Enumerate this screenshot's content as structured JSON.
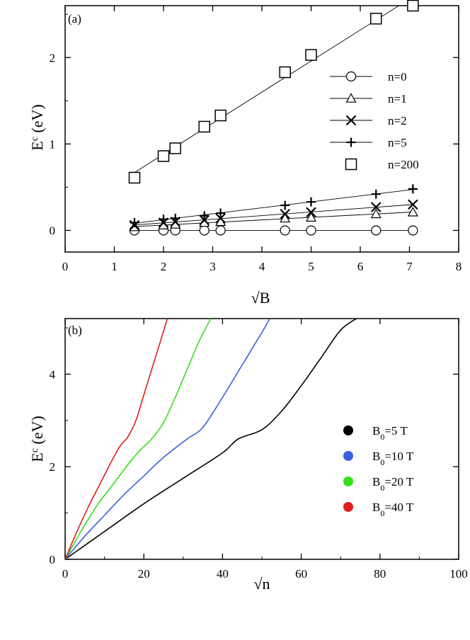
{
  "chart_data": [
    {
      "type": "scatter",
      "panel_label": "(a)",
      "xlabel": "√B",
      "ylabel": "E",
      "ylabel_sup": "c",
      "ylabel_unit": " (eV)",
      "xlim": [
        0,
        8
      ],
      "ylim": [
        -0.25,
        2.6
      ],
      "xticks": [
        0,
        1,
        2,
        3,
        4,
        5,
        6,
        7,
        8
      ],
      "yticks": [
        0,
        1,
        2
      ],
      "legend_position": "right",
      "series": [
        {
          "name": "n=0",
          "marker": "circle",
          "x": [
            1.41,
            2.0,
            2.24,
            2.83,
            3.16,
            4.47,
            5.0,
            6.32,
            7.07
          ],
          "y": [
            0.0,
            0.0,
            0.0,
            0.0,
            0.0,
            0.0,
            0.0,
            0.0,
            0.0
          ]
        },
        {
          "name": "n=1",
          "marker": "triangle",
          "x": [
            1.41,
            2.0,
            2.24,
            2.83,
            3.16,
            4.47,
            5.0,
            6.32,
            7.07
          ],
          "y": [
            0.04,
            0.06,
            0.07,
            0.09,
            0.1,
            0.14,
            0.15,
            0.19,
            0.21
          ]
        },
        {
          "name": "n=2",
          "marker": "x",
          "x": [
            1.41,
            2.0,
            2.24,
            2.83,
            3.16,
            4.47,
            5.0,
            6.32,
            7.07
          ],
          "y": [
            0.06,
            0.09,
            0.1,
            0.12,
            0.14,
            0.19,
            0.21,
            0.27,
            0.3
          ]
        },
        {
          "name": "n=5",
          "marker": "plus",
          "x": [
            1.41,
            2.0,
            2.24,
            2.83,
            3.16,
            4.47,
            5.0,
            6.32,
            7.07
          ],
          "y": [
            0.09,
            0.13,
            0.14,
            0.17,
            0.2,
            0.29,
            0.33,
            0.42,
            0.48
          ]
        },
        {
          "name": "n=200",
          "marker": "square",
          "x": [
            1.41,
            2.0,
            2.24,
            2.83,
            3.16,
            4.47,
            5.0,
            6.32,
            7.07
          ],
          "y": [
            0.61,
            0.86,
            0.95,
            1.2,
            1.33,
            1.83,
            2.03,
            2.45,
            2.6
          ]
        }
      ]
    },
    {
      "type": "line",
      "panel_label": "(b)",
      "xlabel": "√n",
      "ylabel": "E",
      "ylabel_sup": "c",
      "ylabel_unit": " (eV)",
      "xlim": [
        0,
        100
      ],
      "ylim": [
        0,
        5.2
      ],
      "xticks": [
        0,
        20,
        40,
        60,
        80,
        100
      ],
      "yticks": [
        0,
        2,
        4
      ],
      "legend_position": "right",
      "series": [
        {
          "name": "B",
          "sub": "0",
          "suffix": "=5 T",
          "color": "#000000",
          "x": [
            0,
            10,
            20,
            30,
            40,
            44,
            50,
            55,
            60,
            65,
            70,
            74
          ],
          "y": [
            0,
            0.6,
            1.2,
            1.75,
            2.3,
            2.6,
            2.8,
            3.2,
            3.75,
            4.35,
            4.95,
            5.2
          ]
        },
        {
          "name": "B",
          "sub": "0",
          "suffix": "=10 T",
          "color": "#3a5fe0",
          "x": [
            0,
            5,
            10,
            15,
            20,
            25,
            31,
            35,
            40,
            45,
            50,
            52
          ],
          "y": [
            0,
            0.5,
            0.95,
            1.4,
            1.8,
            2.2,
            2.6,
            2.85,
            3.5,
            4.2,
            4.9,
            5.2
          ]
        },
        {
          "name": "B",
          "sub": "0",
          "suffix": "=20 T",
          "color": "#35e01a",
          "x": [
            0,
            4,
            8,
            12,
            16,
            19,
            22,
            25,
            28,
            31,
            34,
            37
          ],
          "y": [
            0,
            0.6,
            1.15,
            1.6,
            2.05,
            2.35,
            2.6,
            2.95,
            3.5,
            4.1,
            4.7,
            5.2
          ]
        },
        {
          "name": "B",
          "sub": "0",
          "suffix": "=40 T",
          "color": "#e01e1a",
          "x": [
            0,
            3,
            6,
            9,
            12,
            14,
            16,
            18,
            20,
            22,
            24,
            26
          ],
          "y": [
            0,
            0.6,
            1.15,
            1.65,
            2.15,
            2.45,
            2.65,
            3.0,
            3.55,
            4.1,
            4.65,
            5.2
          ]
        }
      ]
    }
  ]
}
